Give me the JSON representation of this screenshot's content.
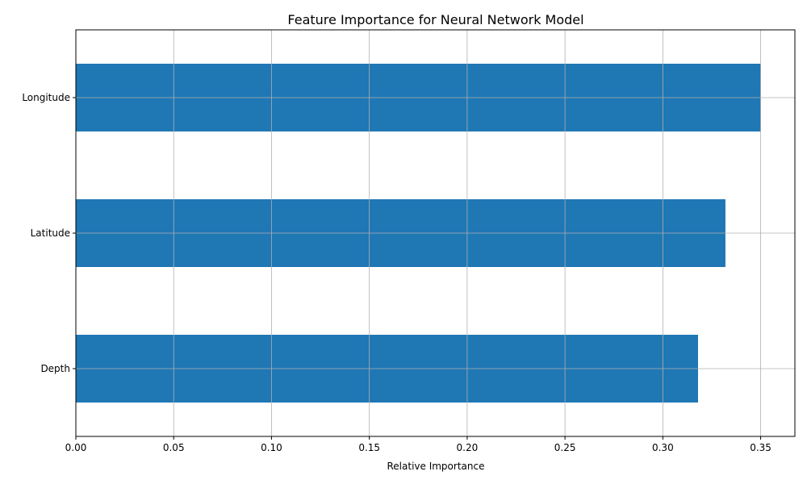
{
  "chart_data": {
    "type": "bar",
    "orientation": "horizontal",
    "title": "Feature Importance for Neural Network Model",
    "xlabel": "Relative Importance",
    "ylabel": "",
    "categories": [
      "Depth",
      "Latitude",
      "Longitude"
    ],
    "values": [
      0.318,
      0.332,
      0.35
    ],
    "xlim": [
      0,
      0.3675
    ],
    "xticks": [
      0.0,
      0.05,
      0.1,
      0.15,
      0.2,
      0.25,
      0.3,
      0.35
    ],
    "xtick_labels": [
      "0.00",
      "0.05",
      "0.10",
      "0.15",
      "0.20",
      "0.25",
      "0.30",
      "0.35"
    ],
    "grid": true,
    "bar_color": "#1f77b4",
    "grid_color": "#b0b0b0"
  }
}
